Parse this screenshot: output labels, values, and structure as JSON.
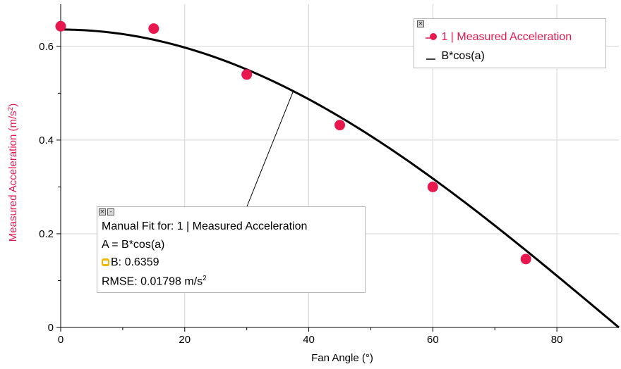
{
  "chart_data": {
    "type": "scatter",
    "xlabel": "Fan Angle (°)",
    "ylabel_text": "Measured Acceleration (m/s",
    "ylabel_sup": "2",
    "ylabel_close": ")",
    "xlim": [
      0,
      90
    ],
    "ylim": [
      0,
      0.69
    ],
    "x_ticks": [
      0,
      20,
      40,
      60,
      80
    ],
    "x_tick_labels": [
      "0",
      "20",
      "40",
      "60",
      "80"
    ],
    "y_ticks": [
      0,
      0.2,
      0.4,
      0.6
    ],
    "y_tick_labels": [
      "0",
      "0.2",
      "0.4",
      "0.6"
    ],
    "grid": true,
    "series": [
      {
        "name": "1 | Measured Acceleration",
        "color": "#e8184f",
        "x": [
          0,
          15,
          30,
          45,
          60,
          75
        ],
        "y": [
          0.643,
          0.638,
          0.54,
          0.432,
          0.3,
          0.146
        ]
      }
    ],
    "fit": {
      "name": "B*cos(a)",
      "B": 0.6359,
      "color": "#000000"
    }
  },
  "legend": {
    "close_glyph": "×",
    "series_label": "1 | Measured Acceleration",
    "fit_label": "B*cos(a)"
  },
  "fit_box": {
    "close_glyph": "×",
    "minimize_glyph": "-",
    "title": "Manual Fit for: 1 | Measured Acceleration",
    "equation": "A = B*cos(a)",
    "param": "B: 0.6359",
    "rmse_text": "RMSE: 0.01798 m/s",
    "rmse_sup": "2"
  }
}
